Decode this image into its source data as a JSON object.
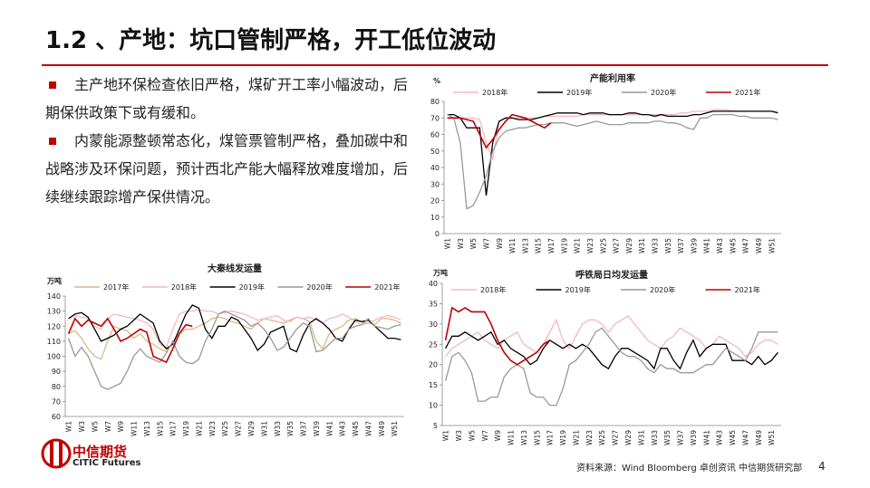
{
  "header": {
    "title": "1.2 、产地：坑口管制严格，开工低位波动"
  },
  "bullets": [
    "主产地环保检查依旧严格，煤矿开工率小幅波动，后期保供政策下或有缓和。",
    "内蒙能源整顿常态化，煤管票管制严格，叠加碳中和战略涉及环保问题，预计西北产能大幅释放难度增加，后续继续跟踪增产保供情况。"
  ],
  "footer": {
    "source": "资料来源：Wind Bloomberg 卓创资讯 中信期货研究部",
    "page": "4",
    "logo_cn": "中信期货",
    "logo_en": "CITIC Futures"
  },
  "chart_data": [
    {
      "type": "line",
      "title": "产能利用率",
      "y_label": "%",
      "categories": [
        "W1",
        null,
        "W3",
        null,
        "W5",
        null,
        "W7",
        null,
        "W9",
        null,
        "W11",
        null,
        "W13",
        null,
        "W15",
        null,
        "W17",
        null,
        "W19",
        null,
        "W21",
        null,
        "W23",
        null,
        "W25",
        null,
        "W27",
        null,
        "W29",
        null,
        "W31",
        null,
        "W33",
        null,
        "W35",
        null,
        "W37",
        null,
        "W39",
        null,
        "W41",
        null,
        "W43",
        null,
        "W45",
        null,
        "W47",
        null,
        "W49",
        null,
        "W51",
        null
      ],
      "ylim": [
        0,
        80
      ],
      "yticks": [
        0,
        10,
        20,
        30,
        40,
        50,
        60,
        70,
        80
      ],
      "series": [
        {
          "name": "2018年",
          "color": "#f4b8c2",
          "values": [
            70,
            70,
            70,
            70,
            70,
            69,
            55,
            45,
            68,
            70,
            70,
            70,
            70,
            70,
            70,
            71,
            71,
            71,
            71,
            71,
            71,
            72,
            72,
            72,
            72,
            72,
            72,
            72,
            72,
            72,
            72,
            72,
            72,
            72,
            72,
            72,
            73,
            73,
            74,
            74,
            74,
            75,
            75,
            75,
            74,
            74,
            74,
            74,
            74,
            74,
            74,
            74
          ]
        },
        {
          "name": "2019年",
          "color": "#000000",
          "values": [
            72,
            72,
            70,
            64,
            64,
            64,
            23,
            55,
            68,
            70,
            70,
            69,
            69,
            69,
            70,
            71,
            72,
            73,
            73,
            73,
            73,
            72,
            73,
            73,
            73,
            72,
            72,
            72,
            73,
            73,
            72,
            72,
            71,
            72,
            71,
            71,
            71,
            71,
            72,
            72,
            73,
            74,
            74,
            74,
            74,
            74,
            74,
            74,
            74,
            74,
            74,
            73
          ]
        },
        {
          "name": "2020年",
          "color": "#999999",
          "values": [
            72,
            70,
            55,
            15,
            17,
            25,
            35,
            50,
            58,
            62,
            63,
            64,
            64,
            65,
            66,
            66,
            67,
            67,
            67,
            66,
            65,
            66,
            67,
            68,
            67,
            66,
            66,
            66,
            67,
            67,
            67,
            67,
            68,
            68,
            67,
            67,
            66,
            64,
            63,
            70,
            70,
            72,
            72,
            72,
            72,
            71,
            71,
            70,
            70,
            70,
            70,
            69
          ]
        },
        {
          "name": "2021年",
          "color": "#c00000",
          "values": [
            70,
            70,
            70,
            69,
            68,
            60,
            52,
            57,
            63,
            68,
            72,
            71,
            70,
            68,
            66,
            64,
            67,
            null,
            null,
            null,
            null,
            null,
            null,
            null,
            null,
            null,
            null,
            null,
            null,
            null,
            null,
            null,
            null,
            null,
            null,
            null,
            null,
            null,
            null,
            null,
            null,
            null,
            null,
            null,
            null,
            null,
            null,
            null,
            null,
            null,
            null,
            null
          ]
        }
      ]
    },
    {
      "type": "line",
      "title": "大秦线发运量",
      "y_label": "万吨",
      "categories": [
        "W1",
        null,
        "W3",
        null,
        "W5",
        null,
        "W7",
        null,
        "W9",
        null,
        "W11",
        null,
        "W13",
        null,
        "W15",
        null,
        "W17",
        null,
        "W19",
        null,
        "W21",
        null,
        "W23",
        null,
        "W25",
        null,
        "W27",
        null,
        "W29",
        null,
        "W31",
        null,
        "W33",
        null,
        "W35",
        null,
        "W37",
        null,
        "W39",
        null,
        "W41",
        null,
        "W43",
        null,
        "W45",
        null,
        "W47",
        null,
        "W49",
        null,
        "W51",
        null
      ],
      "ylim": [
        60,
        140
      ],
      "yticks": [
        60,
        70,
        80,
        90,
        100,
        110,
        120,
        130,
        140
      ],
      "series": [
        {
          "name": "2017年",
          "color": "#d9b98a",
          "values": [
            115,
            117,
            112,
            105,
            100,
            98,
            110,
            120,
            118,
            117,
            112,
            115,
            110,
            108,
            105,
            103,
            110,
            115,
            118,
            118,
            120,
            122,
            125,
            126,
            125,
            123,
            122,
            120,
            118,
            122,
            125,
            124,
            123,
            122,
            124,
            126,
            125,
            123,
            110,
            105,
            115,
            118,
            120,
            124,
            125,
            123,
            122,
            121,
            125,
            125,
            124,
            122
          ]
        },
        {
          "name": "2018年",
          "color": "#f4b8c2",
          "values": [
            125,
            127,
            126,
            125,
            120,
            118,
            125,
            128,
            127,
            126,
            125,
            124,
            122,
            118,
            108,
            106,
            118,
            128,
            130,
            130,
            131,
            130,
            130,
            128,
            129,
            130,
            129,
            128,
            126,
            124,
            125,
            126,
            127,
            124,
            123,
            126,
            125,
            126,
            124,
            122,
            125,
            126,
            128,
            126,
            123,
            121,
            122,
            124,
            126,
            127,
            126,
            124
          ]
        },
        {
          "name": "2019年",
          "color": "#000000",
          "values": [
            125,
            128,
            129,
            126,
            118,
            110,
            112,
            114,
            118,
            120,
            124,
            128,
            125,
            122,
            110,
            105,
            108,
            118,
            128,
            134,
            132,
            118,
            112,
            120,
            120,
            126,
            124,
            118,
            112,
            104,
            108,
            116,
            118,
            120,
            105,
            103,
            114,
            122,
            125,
            122,
            118,
            112,
            110,
            118,
            124,
            123,
            124,
            120,
            116,
            112,
            112,
            111
          ]
        },
        {
          "name": "2020年",
          "color": "#999999",
          "values": [
            112,
            100,
            106,
            100,
            90,
            80,
            78,
            80,
            82,
            90,
            100,
            105,
            100,
            98,
            96,
            102,
            110,
            100,
            96,
            95,
            98,
            110,
            118,
            128,
            130,
            128,
            126,
            124,
            120,
            122,
            118,
            112,
            104,
            106,
            112,
            118,
            122,
            120,
            103,
            104,
            108,
            112,
            112,
            118,
            120,
            121,
            125,
            120,
            119,
            118,
            120,
            121
          ]
        },
        {
          "name": "2021年",
          "color": "#c00000",
          "values": [
            115,
            125,
            120,
            124,
            122,
            120,
            125,
            118,
            110,
            112,
            115,
            118,
            116,
            100,
            98,
            96,
            105,
            115,
            121,
            120,
            null,
            null,
            null,
            null,
            null,
            null,
            null,
            null,
            null,
            null,
            null,
            null,
            null,
            null,
            null,
            null,
            null,
            null,
            null,
            null,
            null,
            null,
            null,
            null,
            null,
            null,
            null,
            null,
            null,
            null,
            null,
            null
          ]
        }
      ]
    },
    {
      "type": "line",
      "title": "呼铁局日均发运量",
      "y_label": "万吨",
      "categories": [
        "W1",
        null,
        "W3",
        null,
        "W5",
        null,
        "W7",
        null,
        "W9",
        null,
        "W11",
        null,
        "W13",
        null,
        "W15",
        null,
        "W17",
        null,
        "W19",
        null,
        "W21",
        null,
        "W23",
        null,
        "W25",
        null,
        "W27",
        null,
        "W29",
        null,
        "W31",
        null,
        "W33",
        null,
        "W35",
        null,
        "W37",
        null,
        "W39",
        null,
        "W41",
        null,
        "W43",
        null,
        "W45",
        null,
        "W47",
        null,
        "W49",
        null,
        "W51",
        null
      ],
      "ylim": [
        5,
        40
      ],
      "yticks": [
        5,
        10,
        15,
        20,
        25,
        30,
        35,
        40
      ],
      "series": [
        {
          "name": "2018年",
          "color": "#f4b8c2",
          "values": [
            22,
            24,
            25,
            26,
            27,
            28,
            26,
            25,
            24,
            26,
            27,
            28,
            25,
            24,
            23,
            25,
            28,
            31,
            26,
            24,
            27,
            30,
            31,
            31,
            30,
            28,
            30,
            31,
            32,
            30,
            28,
            26,
            25,
            24,
            26,
            27,
            29,
            28,
            27,
            26,
            24,
            25,
            27,
            26,
            25,
            24,
            22,
            23,
            25,
            26,
            26,
            25
          ]
        },
        {
          "name": "2019年",
          "color": "#000000",
          "values": [
            24,
            27,
            27,
            28,
            27,
            26,
            27,
            28,
            25,
            26,
            24,
            23,
            22,
            20,
            21,
            24,
            26,
            25,
            24,
            25,
            24,
            25,
            24,
            22,
            20,
            19,
            22,
            24,
            24,
            23,
            22,
            21,
            19,
            24,
            24,
            21,
            19,
            23,
            26,
            22,
            24,
            25,
            25,
            25,
            21,
            21,
            21,
            20,
            22,
            20,
            21,
            23
          ]
        },
        {
          "name": "2020年",
          "color": "#999999",
          "values": [
            16,
            22,
            23,
            21,
            18,
            11,
            11,
            12,
            12,
            17,
            19,
            20,
            19,
            13,
            12,
            12,
            10,
            10,
            14,
            20,
            21,
            23,
            25,
            28,
            29,
            27,
            25,
            23,
            22,
            22,
            21,
            19,
            18,
            20,
            19,
            19,
            18,
            18,
            18,
            19,
            20,
            20,
            22,
            24,
            23,
            22,
            21,
            24,
            28,
            28,
            28,
            28
          ]
        },
        {
          "name": "2021年",
          "color": "#c00000",
          "values": [
            26,
            34,
            33,
            34,
            33,
            33,
            33,
            30,
            26,
            23,
            21,
            20,
            21,
            22,
            23,
            25,
            26,
            null,
            null,
            null,
            null,
            null,
            null,
            null,
            null,
            null,
            null,
            null,
            null,
            null,
            null,
            null,
            null,
            null,
            null,
            null,
            null,
            null,
            null,
            null,
            null,
            null,
            null,
            null,
            null,
            null,
            null,
            null,
            null,
            null,
            null,
            null
          ]
        }
      ]
    }
  ]
}
